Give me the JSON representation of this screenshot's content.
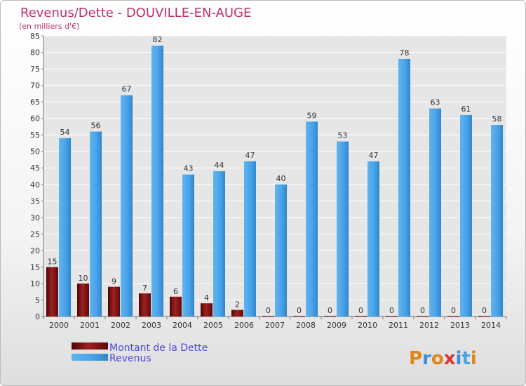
{
  "chart_data": {
    "type": "bar",
    "title": "Revenus/Dette - DOUVILLE-EN-AUGE",
    "subtitle": "(en milliers d'€)",
    "categories": [
      "2000",
      "2001",
      "2002",
      "2003",
      "2004",
      "2005",
      "2006",
      "2007",
      "2008",
      "2009",
      "2010",
      "2011",
      "2012",
      "2013",
      "2014"
    ],
    "series": [
      {
        "name": "Montant de la Dette",
        "color": "#7a1414",
        "values": [
          15,
          10,
          9,
          7,
          6,
          4,
          2,
          0,
          0,
          0,
          0,
          0,
          0,
          0,
          0
        ]
      },
      {
        "name": "Revenus",
        "color": "#4aa3e8",
        "values": [
          54,
          56,
          67,
          82,
          43,
          44,
          47,
          40,
          59,
          53,
          47,
          78,
          63,
          61,
          58
        ]
      }
    ],
    "ylim": [
      0,
      85
    ],
    "yticks": [
      0,
      5,
      10,
      15,
      20,
      25,
      30,
      35,
      40,
      45,
      50,
      55,
      60,
      65,
      70,
      75,
      80,
      85
    ],
    "grid": true,
    "legend": "bottom-left"
  },
  "logo": {
    "text": "Proxiti"
  }
}
